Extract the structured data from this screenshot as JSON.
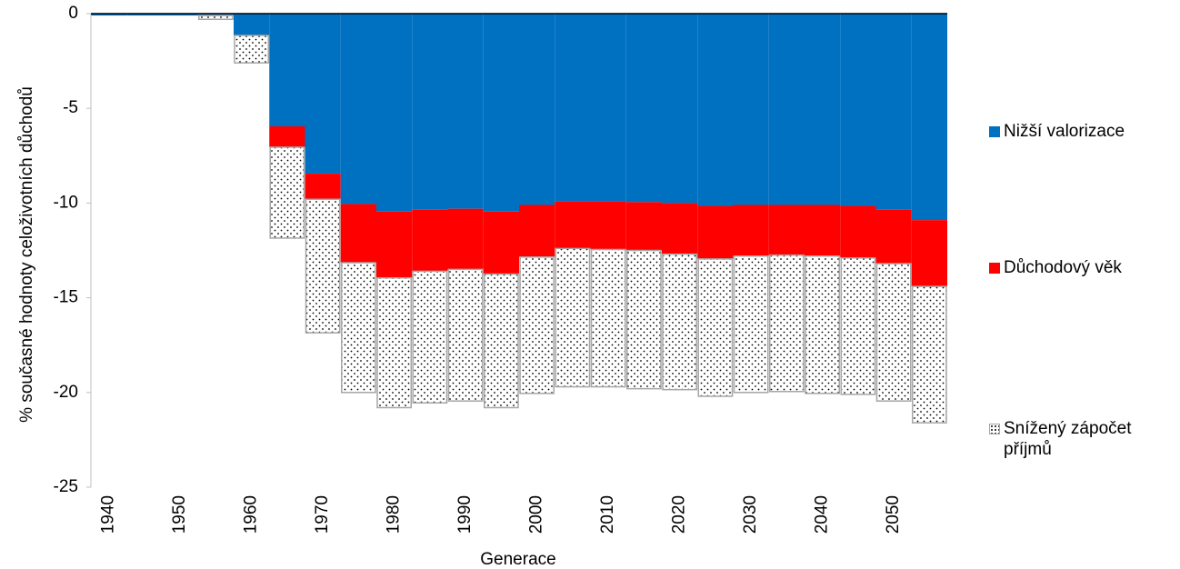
{
  "chart_data": {
    "type": "stacked-bar",
    "y_label": "% současné hodnoty celoživotních důchodů",
    "x_label": "Generace",
    "categories": [
      "1940",
      null,
      "1950",
      null,
      "1960",
      null,
      "1970",
      null,
      "1980",
      null,
      "1990",
      null,
      "2000",
      null,
      "2010",
      null,
      "2020",
      null,
      "2030",
      null,
      "2040",
      null,
      "2050",
      null
    ],
    "series": [
      {
        "name": "Nižší valorizace",
        "color": "#0070c0",
        "values": [
          -0.1,
          -0.1,
          -0.1,
          -0.1,
          -1.15,
          -5.95,
          -8.45,
          -10.05,
          -10.45,
          -10.35,
          -10.3,
          -10.45,
          -10.1,
          -9.9,
          -9.9,
          -9.95,
          -10.0,
          -10.15,
          -10.1,
          -10.1,
          -10.1,
          -10.15,
          -10.35,
          -10.9
        ]
      },
      {
        "name": "Důchodový věk",
        "color": "#ff0000",
        "values": [
          0,
          0,
          0,
          0,
          0,
          -1.1,
          -1.35,
          -3.1,
          -3.5,
          -3.25,
          -3.2,
          -3.3,
          -2.75,
          -2.5,
          -2.55,
          -2.55,
          -2.7,
          -2.8,
          -2.7,
          -2.65,
          -2.7,
          -2.75,
          -2.85,
          -3.5
        ]
      },
      {
        "name": "Snížený zápočet příjmů",
        "color": "#a6a6a6",
        "pattern": "dots",
        "values": [
          0,
          0,
          0,
          -0.2,
          -1.45,
          -4.8,
          -7.05,
          -6.85,
          -6.85,
          -6.95,
          -6.95,
          -7.05,
          -7.2,
          -7.3,
          -7.25,
          -7.3,
          -7.15,
          -7.25,
          -7.2,
          -7.2,
          -7.25,
          -7.2,
          -7.25,
          -7.2
        ]
      }
    ],
    "ylim": [
      -25,
      0
    ],
    "yticks": [
      0,
      -5,
      -10,
      -15,
      -20,
      -25
    ],
    "grid": false,
    "legend": "right"
  }
}
